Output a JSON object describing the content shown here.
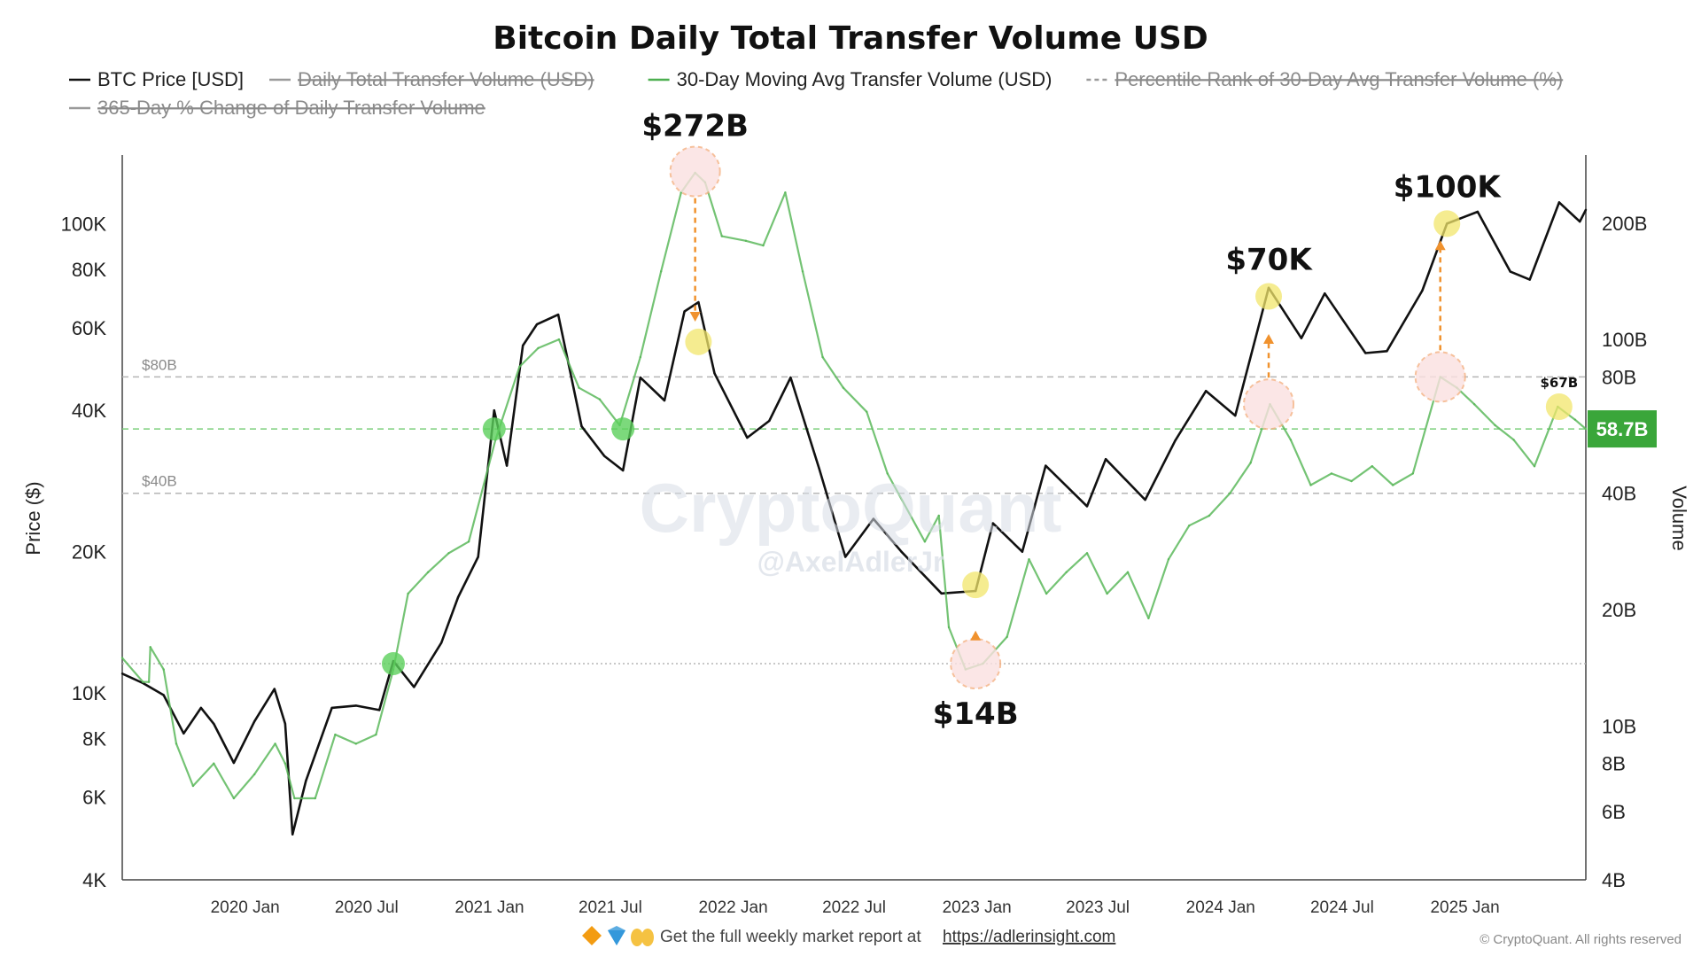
{
  "chart_data": {
    "type": "line",
    "title": "Bitcoin Daily Total Transfer Volume USD",
    "legend": [
      {
        "label": "BTC Price [USD]",
        "color": "#111111",
        "style": "solid",
        "struck": false
      },
      {
        "label": "Daily Total Transfer Volume (USD)",
        "color": "#9a9a9a",
        "style": "solid",
        "struck": true
      },
      {
        "label": "30-Day Moving Avg Transfer Volume (USD)",
        "color": "#4caf50",
        "style": "solid",
        "struck": false
      },
      {
        "label": "Percentile Rank of 30-Day Avg Transfer Volume (%)",
        "color": "#9a9a9a",
        "style": "dashed",
        "struck": true
      },
      {
        "label": "365-Day % Change of Daily Transfer Volume",
        "color": "#9a9a9a",
        "style": "solid",
        "struck": true
      }
    ],
    "legend_placement": "top",
    "ylabel_left": "Price ($)",
    "ylabel_right": "Volume",
    "left_axis": {
      "scale": "log",
      "range": [
        4000,
        140000
      ],
      "ticks": [
        {
          "v": 100000,
          "label": "100K"
        },
        {
          "v": 80000,
          "label": "80K"
        },
        {
          "v": 60000,
          "label": "60K"
        },
        {
          "v": 40000,
          "label": "40K"
        },
        {
          "v": 20000,
          "label": "20K"
        },
        {
          "v": 10000,
          "label": "10K"
        },
        {
          "v": 8000,
          "label": "8K"
        },
        {
          "v": 6000,
          "label": "6K"
        },
        {
          "v": 4000,
          "label": "4K"
        }
      ]
    },
    "right_axis": {
      "scale": "log",
      "range": [
        4,
        300
      ],
      "ticks": [
        {
          "v": 200,
          "label": "200B"
        },
        {
          "v": 100,
          "label": "100B"
        },
        {
          "v": 80,
          "label": "80B"
        },
        {
          "v": 40,
          "label": "40B"
        },
        {
          "v": 20,
          "label": "20B"
        },
        {
          "v": 10,
          "label": "10B"
        },
        {
          "v": 8,
          "label": "8B"
        },
        {
          "v": 6,
          "label": "6B"
        },
        {
          "v": 4,
          "label": "4B"
        }
      ]
    },
    "x_axis": {
      "range": [
        "2019-07-01",
        "2025-07-01"
      ],
      "ticks": [
        {
          "v": "2020-01-01",
          "label": "2020 Jan"
        },
        {
          "v": "2020-07-01",
          "label": "2020 Jul"
        },
        {
          "v": "2021-01-01",
          "label": "2021 Jan"
        },
        {
          "v": "2021-07-01",
          "label": "2021 Jul"
        },
        {
          "v": "2022-01-01",
          "label": "2022 Jan"
        },
        {
          "v": "2022-07-01",
          "label": "2022 Jul"
        },
        {
          "v": "2023-01-01",
          "label": "2023 Jan"
        },
        {
          "v": "2023-07-01",
          "label": "2023 Jul"
        },
        {
          "v": "2024-01-01",
          "label": "2024 Jan"
        },
        {
          "v": "2024-07-01",
          "label": "2024 Jul"
        },
        {
          "v": "2025-01-01",
          "label": "2025 Jan"
        }
      ]
    },
    "grid": false,
    "reference_lines": [
      {
        "value": 80,
        "label": "$80B",
        "color": "#b5b5b5",
        "style": "dashed"
      },
      {
        "value": 58.7,
        "label": "",
        "color": "#7ccf7c",
        "style": "dashed"
      },
      {
        "value": 40,
        "label": "$40B",
        "color": "#b5b5b5",
        "style": "dashed"
      },
      {
        "value": 14.5,
        "label": "",
        "color": "#b5b5b5",
        "style": "dotted"
      }
    ],
    "current_value_label": {
      "text": "58.7B",
      "color": "#3aa63a"
    },
    "series": [
      {
        "name": "BTC Price [USD]",
        "axis": "left",
        "color": "#111111",
        "points": [
          [
            "2019-07-01",
            11000
          ],
          [
            "2019-08-01",
            10500
          ],
          [
            "2019-09-01",
            9900
          ],
          [
            "2019-10-01",
            8200
          ],
          [
            "2019-10-27",
            9300
          ],
          [
            "2019-11-15",
            8600
          ],
          [
            "2019-12-15",
            7100
          ],
          [
            "2020-01-15",
            8700
          ],
          [
            "2020-02-14",
            10200
          ],
          [
            "2020-03-01",
            8600
          ],
          [
            "2020-03-12",
            5000
          ],
          [
            "2020-04-01",
            6500
          ],
          [
            "2020-05-10",
            9300
          ],
          [
            "2020-06-15",
            9400
          ],
          [
            "2020-07-20",
            9200
          ],
          [
            "2020-08-10",
            11700
          ],
          [
            "2020-09-10",
            10300
          ],
          [
            "2020-10-21",
            12800
          ],
          [
            "2020-11-15",
            16000
          ],
          [
            "2020-12-15",
            19500
          ],
          [
            "2021-01-08",
            40000
          ],
          [
            "2021-01-27",
            30500
          ],
          [
            "2021-02-20",
            55000
          ],
          [
            "2021-03-13",
            61000
          ],
          [
            "2021-04-14",
            64000
          ],
          [
            "2021-05-19",
            37000
          ],
          [
            "2021-06-22",
            32000
          ],
          [
            "2021-07-20",
            29800
          ],
          [
            "2021-08-15",
            47000
          ],
          [
            "2021-09-20",
            42000
          ],
          [
            "2021-10-20",
            65000
          ],
          [
            "2021-11-10",
            68000
          ],
          [
            "2021-12-04",
            48000
          ],
          [
            "2022-01-22",
            35000
          ],
          [
            "2022-02-24",
            38000
          ],
          [
            "2022-03-28",
            47000
          ],
          [
            "2022-05-10",
            30000
          ],
          [
            "2022-06-18",
            19500
          ],
          [
            "2022-07-30",
            23500
          ],
          [
            "2022-09-10",
            20000
          ],
          [
            "2022-11-09",
            16300
          ],
          [
            "2022-12-30",
            16500
          ],
          [
            "2023-01-25",
            23000
          ],
          [
            "2023-03-10",
            20000
          ],
          [
            "2023-04-14",
            30500
          ],
          [
            "2023-06-15",
            25000
          ],
          [
            "2023-07-13",
            31500
          ],
          [
            "2023-09-10",
            25800
          ],
          [
            "2023-10-25",
            34500
          ],
          [
            "2023-12-10",
            44000
          ],
          [
            "2024-01-23",
            39000
          ],
          [
            "2024-03-13",
            73000
          ],
          [
            "2024-05-01",
            57000
          ],
          [
            "2024-06-05",
            71000
          ],
          [
            "2024-08-05",
            53000
          ],
          [
            "2024-09-06",
            53500
          ],
          [
            "2024-10-29",
            72000
          ],
          [
            "2024-12-05",
            100000
          ],
          [
            "2025-01-20",
            106000
          ],
          [
            "2025-03-10",
            79000
          ],
          [
            "2025-04-08",
            76000
          ],
          [
            "2025-05-22",
            111000
          ],
          [
            "2025-06-22",
            101000
          ],
          [
            "2025-07-01",
            107000
          ]
        ]
      },
      {
        "name": "30-Day Moving Avg Transfer Volume (USD)",
        "axis": "right",
        "color": "#5cb85c",
        "points": [
          [
            "2019-07-01",
            15
          ],
          [
            "2019-08-01",
            13
          ],
          [
            "2019-08-10",
            13
          ],
          [
            "2019-08-12",
            16
          ],
          [
            "2019-09-01",
            14
          ],
          [
            "2019-09-20",
            9
          ],
          [
            "2019-10-15",
            7
          ],
          [
            "2019-11-15",
            8
          ],
          [
            "2019-12-15",
            6.5
          ],
          [
            "2020-01-15",
            7.5
          ],
          [
            "2020-02-15",
            9
          ],
          [
            "2020-03-01",
            8
          ],
          [
            "2020-03-15",
            6.5
          ],
          [
            "2020-04-15",
            6.5
          ],
          [
            "2020-05-15",
            9.5
          ],
          [
            "2020-06-15",
            9
          ],
          [
            "2020-07-15",
            9.5
          ],
          [
            "2020-08-10",
            14
          ],
          [
            "2020-09-01",
            22
          ],
          [
            "2020-10-01",
            25
          ],
          [
            "2020-11-01",
            28
          ],
          [
            "2020-12-01",
            30
          ],
          [
            "2021-01-10",
            55
          ],
          [
            "2021-02-15",
            85
          ],
          [
            "2021-03-15",
            95
          ],
          [
            "2021-04-15",
            100
          ],
          [
            "2021-05-15",
            75
          ],
          [
            "2021-06-15",
            70
          ],
          [
            "2021-07-15",
            60
          ],
          [
            "2021-08-15",
            90
          ],
          [
            "2021-09-15",
            150
          ],
          [
            "2021-10-15",
            240
          ],
          [
            "2021-11-05",
            270
          ],
          [
            "2021-11-20",
            255
          ],
          [
            "2021-12-15",
            185
          ],
          [
            "2022-01-20",
            180
          ],
          [
            "2022-02-15",
            175
          ],
          [
            "2022-03-20",
            240
          ],
          [
            "2022-04-15",
            150
          ],
          [
            "2022-05-15",
            90
          ],
          [
            "2022-06-15",
            75
          ],
          [
            "2022-07-20",
            65
          ],
          [
            "2022-08-20",
            45
          ],
          [
            "2022-10-15",
            30
          ],
          [
            "2022-11-05",
            35
          ],
          [
            "2022-11-20",
            18
          ],
          [
            "2022-12-15",
            14
          ],
          [
            "2023-01-10",
            14.5
          ],
          [
            "2023-02-15",
            17
          ],
          [
            "2023-03-20",
            27
          ],
          [
            "2023-04-15",
            22
          ],
          [
            "2023-05-15",
            25
          ],
          [
            "2023-06-15",
            28
          ],
          [
            "2023-07-15",
            22
          ],
          [
            "2023-08-15",
            25
          ],
          [
            "2023-09-15",
            19
          ],
          [
            "2023-10-15",
            27
          ],
          [
            "2023-11-15",
            33
          ],
          [
            "2023-12-15",
            35
          ],
          [
            "2024-01-15",
            40
          ],
          [
            "2024-02-15",
            48
          ],
          [
            "2024-03-15",
            68
          ],
          [
            "2024-04-15",
            55
          ],
          [
            "2024-05-15",
            42
          ],
          [
            "2024-06-15",
            45
          ],
          [
            "2024-07-15",
            43
          ],
          [
            "2024-08-15",
            47
          ],
          [
            "2024-09-15",
            42
          ],
          [
            "2024-10-15",
            45
          ],
          [
            "2024-11-25",
            80
          ],
          [
            "2024-12-20",
            75
          ],
          [
            "2025-01-15",
            68
          ],
          [
            "2025-02-15",
            60
          ],
          [
            "2025-03-15",
            55
          ],
          [
            "2025-04-15",
            47
          ],
          [
            "2025-05-20",
            67
          ],
          [
            "2025-06-15",
            62
          ],
          [
            "2025-07-01",
            58.7
          ]
        ]
      }
    ],
    "annotations": [
      {
        "text": "$272B",
        "size": "large",
        "value": "272B volume peak"
      },
      {
        "text": "$14B",
        "size": "large",
        "value": "14B volume low"
      },
      {
        "text": "$70K",
        "size": "large",
        "value": "70K price"
      },
      {
        "text": "$100K",
        "size": "large",
        "value": "100K price"
      },
      {
        "text": "$67B",
        "size": "small",
        "value": "67B volume"
      }
    ],
    "markers": [
      {
        "date": "2021-11-05",
        "value": 272,
        "axis": "right",
        "kind": "volume-peak",
        "color": "#f4b183"
      },
      {
        "date": "2021-11-10",
        "value": 56000,
        "axis": "left",
        "kind": "price",
        "color": "#f2e66b"
      },
      {
        "date": "2022-12-30",
        "value": 14.5,
        "axis": "right",
        "kind": "volume-low",
        "color": "#f4b183"
      },
      {
        "date": "2022-12-30",
        "value": 17000,
        "axis": "left",
        "kind": "price",
        "color": "#f2e66b"
      },
      {
        "date": "2024-03-13",
        "value": 68,
        "axis": "right",
        "kind": "volume",
        "color": "#f4b183"
      },
      {
        "date": "2024-03-13",
        "value": 70000,
        "axis": "left",
        "kind": "price",
        "color": "#f2e66b"
      },
      {
        "date": "2024-11-25",
        "value": 80,
        "axis": "right",
        "kind": "volume",
        "color": "#f4b183"
      },
      {
        "date": "2024-12-05",
        "value": 100000,
        "axis": "left",
        "kind": "price",
        "color": "#f2e66b"
      },
      {
        "date": "2025-05-22",
        "value": 67,
        "axis": "right",
        "kind": "volume",
        "color": "#f2e66b"
      },
      {
        "date": "2021-01-08",
        "value": 58.7,
        "axis": "right",
        "kind": "cross",
        "color": "#5bd05b"
      },
      {
        "date": "2021-07-20",
        "value": 58.7,
        "axis": "right",
        "kind": "cross",
        "color": "#5bd05b"
      },
      {
        "date": "2020-08-10",
        "value": 14.5,
        "axis": "right",
        "kind": "cross",
        "color": "#5bd05b"
      }
    ],
    "arrows": [
      {
        "from_date": "2021-11-05",
        "from_value": 272,
        "from_axis": "right",
        "to_date": "2021-11-05",
        "to_value": 60000,
        "to_axis": "left",
        "color": "#f0922e"
      },
      {
        "from_date": "2022-12-30",
        "from_value": 14.5,
        "from_axis": "right",
        "to_date": "2022-12-30",
        "to_value": 14000,
        "to_axis": "left",
        "color": "#f0922e"
      },
      {
        "from_date": "2024-03-13",
        "from_value": 68,
        "from_axis": "right",
        "to_date": "2024-03-13",
        "to_value": 60000,
        "to_axis": "left",
        "color": "#f0922e"
      },
      {
        "from_date": "2024-11-25",
        "from_value": 80,
        "from_axis": "right",
        "to_date": "2024-11-25",
        "to_value": 95000,
        "to_axis": "left",
        "color": "#f0922e"
      }
    ]
  },
  "watermark": {
    "brand": "CryptoQuant",
    "handle": "@AxelAdlerJr"
  },
  "footer": {
    "text": "Get the full weekly market report at",
    "link": "https://adlerinsight.com",
    "emoji_icons": [
      "orange-diamond-icon",
      "blue-gem-icon",
      "raised-hands-icon"
    ]
  },
  "copyright": "© CryptoQuant. All rights reserved"
}
